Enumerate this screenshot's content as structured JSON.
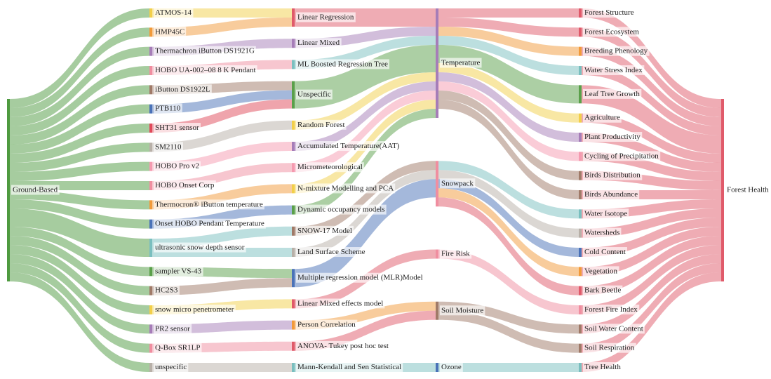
{
  "chart_data": {
    "type": "sankey",
    "nodes": [
      {
        "name": "Ground-Based",
        "color": "#4e9a3f"
      },
      {
        "name": "ATMOS-14",
        "color": "#f2cf4a"
      },
      {
        "name": "HMP45C",
        "color": "#f29a3a"
      },
      {
        "name": "Thermachron iButton DS1921G",
        "color": "#a67db8"
      },
      {
        "name": "HOBO UA-002–08 8 K Pendant",
        "color": "#f08ea0"
      },
      {
        "name": "iButton DS1922L",
        "color": "#a07a68"
      },
      {
        "name": "PTB110",
        "color": "#4a72b8"
      },
      {
        "name": "SHT31 sensor",
        "color": "#e04a5a"
      },
      {
        "name": "SM2110",
        "color": "#b8b0a8"
      },
      {
        "name": "HOBO Pro v2",
        "color": "#f59ab0"
      },
      {
        "name": "HOBO Onset Corp",
        "color": "#f08ea0"
      },
      {
        "name": "Thermocron® iButton temperature",
        "color": "#f29a3a"
      },
      {
        "name": "Onset HOBO Pendant Temperature",
        "color": "#4a72b8"
      },
      {
        "name": "ultrasonic snow depth sensor",
        "color": "#7abfbf"
      },
      {
        "name": "sampler VS-43",
        "color": "#5aa04a"
      },
      {
        "name": "HC2S3",
        "color": "#a07a68"
      },
      {
        "name": "snow micro penetrometer",
        "color": "#f2cf4a"
      },
      {
        "name": "PR2 sensor",
        "color": "#a67db8"
      },
      {
        "name": "Q-Box SR1LP",
        "color": "#f08ea0"
      },
      {
        "name": "unspecific",
        "color": "#b8b0a8"
      },
      {
        "name": "Linear Regression",
        "color": "#e05a6a"
      },
      {
        "name": "Linear Mixed",
        "color": "#a67db8"
      },
      {
        "name": "ML Boosted Regression Tree",
        "color": "#7abfbf"
      },
      {
        "name": "Unspecific",
        "color": "#5aa04a"
      },
      {
        "name": "Random Forest",
        "color": "#f2cf4a"
      },
      {
        "name": "Accumulated Temperature(AAT)",
        "color": "#a67db8"
      },
      {
        "name": "Micrometeorological",
        "color": "#f59ab0"
      },
      {
        "name": "N-mixture Modelling and PCA",
        "color": "#f2cf4a"
      },
      {
        "name": "Dynamic occupancy models",
        "color": "#5aa04a"
      },
      {
        "name": "SNOW-17 Model",
        "color": "#a07a68"
      },
      {
        "name": "Land Surface Scheme",
        "color": "#b8b0a8"
      },
      {
        "name": "Multiple regression model (MLR)Model",
        "color": "#4a72b8"
      },
      {
        "name": "Linear Mixed effects model",
        "color": "#e05a6a"
      },
      {
        "name": "Person Correlation",
        "color": "#f29a3a"
      },
      {
        "name": "ANOVA- Tukey post hoc test",
        "color": "#e05a6a"
      },
      {
        "name": "Mann-Kendall and Sen Statistical",
        "color": "#7abfbf"
      },
      {
        "name": "Temperature",
        "color": "#a67db8"
      },
      {
        "name": "Snowpack",
        "color": "#f08ea0"
      },
      {
        "name": "Fire Risk",
        "color": "#f08ea0"
      },
      {
        "name": "Soil Moisture",
        "color": "#a07a68"
      },
      {
        "name": "Ozone",
        "color": "#4a72b8"
      },
      {
        "name": "Forest Structure",
        "color": "#e05a6a"
      },
      {
        "name": "Forest Ecosystem",
        "color": "#e05a6a"
      },
      {
        "name": "Breeding Phenology",
        "color": "#f29a3a"
      },
      {
        "name": "Water Stress Index",
        "color": "#7abfbf"
      },
      {
        "name": "Leaf Tree Growth",
        "color": "#5aa04a"
      },
      {
        "name": "Agriculture",
        "color": "#f2cf4a"
      },
      {
        "name": "Plant Productivity",
        "color": "#a67db8"
      },
      {
        "name": "Cycling of Precipitation",
        "color": "#f59ab0"
      },
      {
        "name": "Birds Distribution",
        "color": "#a07a68"
      },
      {
        "name": "Birds Abundance",
        "color": "#a07a68"
      },
      {
        "name": "Water Isotope",
        "color": "#7abfbf"
      },
      {
        "name": "Watersheds",
        "color": "#b8b0a8"
      },
      {
        "name": "Cold Content",
        "color": "#4a72b8"
      },
      {
        "name": "Vegetation",
        "color": "#f29a3a"
      },
      {
        "name": "Bark Beetle",
        "color": "#e05a6a"
      },
      {
        "name": "Forest Fire Index",
        "color": "#f08ea0"
      },
      {
        "name": "Soil Water Content",
        "color": "#a07a68"
      },
      {
        "name": "Soil Respiration",
        "color": "#a07a68"
      },
      {
        "name": "Tree Health",
        "color": "#7abfbf"
      },
      {
        "name": "Forest Health",
        "color": "#e05a6a"
      }
    ],
    "links": [
      {
        "source": 0,
        "target": 1,
        "value": 1
      },
      {
        "source": 0,
        "target": 2,
        "value": 1
      },
      {
        "source": 0,
        "target": 3,
        "value": 1
      },
      {
        "source": 0,
        "target": 4,
        "value": 1
      },
      {
        "source": 0,
        "target": 5,
        "value": 1
      },
      {
        "source": 0,
        "target": 6,
        "value": 1
      },
      {
        "source": 0,
        "target": 7,
        "value": 1
      },
      {
        "source": 0,
        "target": 8,
        "value": 1
      },
      {
        "source": 0,
        "target": 9,
        "value": 1
      },
      {
        "source": 0,
        "target": 10,
        "value": 1
      },
      {
        "source": 0,
        "target": 11,
        "value": 1
      },
      {
        "source": 0,
        "target": 12,
        "value": 1
      },
      {
        "source": 0,
        "target": 13,
        "value": 2
      },
      {
        "source": 0,
        "target": 14,
        "value": 1
      },
      {
        "source": 0,
        "target": 15,
        "value": 1
      },
      {
        "source": 0,
        "target": 16,
        "value": 1
      },
      {
        "source": 0,
        "target": 17,
        "value": 1
      },
      {
        "source": 0,
        "target": 18,
        "value": 1
      },
      {
        "source": 0,
        "target": 19,
        "value": 1
      },
      {
        "source": 1,
        "target": 20,
        "value": 1
      },
      {
        "source": 2,
        "target": 20,
        "value": 1
      },
      {
        "source": 3,
        "target": 21,
        "value": 1
      },
      {
        "source": 4,
        "target": 22,
        "value": 1
      },
      {
        "source": 5,
        "target": 23,
        "value": 1
      },
      {
        "source": 6,
        "target": 23,
        "value": 1
      },
      {
        "source": 7,
        "target": 23,
        "value": 1
      },
      {
        "source": 8,
        "target": 24,
        "value": 1
      },
      {
        "source": 9,
        "target": 25,
        "value": 1
      },
      {
        "source": 10,
        "target": 26,
        "value": 1
      },
      {
        "source": 11,
        "target": 27,
        "value": 1
      },
      {
        "source": 12,
        "target": 28,
        "value": 1
      },
      {
        "source": 13,
        "target": 29,
        "value": 1
      },
      {
        "source": 13,
        "target": 30,
        "value": 1
      },
      {
        "source": 14,
        "target": 31,
        "value": 1
      },
      {
        "source": 15,
        "target": 31,
        "value": 1
      },
      {
        "source": 16,
        "target": 32,
        "value": 1
      },
      {
        "source": 17,
        "target": 33,
        "value": 1
      },
      {
        "source": 18,
        "target": 34,
        "value": 1
      },
      {
        "source": 19,
        "target": 35,
        "value": 1
      },
      {
        "source": 20,
        "target": 36,
        "value": 2
      },
      {
        "source": 21,
        "target": 36,
        "value": 1
      },
      {
        "source": 22,
        "target": 36,
        "value": 1
      },
      {
        "source": 23,
        "target": 36,
        "value": 3
      },
      {
        "source": 24,
        "target": 36,
        "value": 1
      },
      {
        "source": 25,
        "target": 36,
        "value": 1
      },
      {
        "source": 26,
        "target": 36,
        "value": 1
      },
      {
        "source": 27,
        "target": 36,
        "value": 1
      },
      {
        "source": 28,
        "target": 36,
        "value": 1
      },
      {
        "source": 29,
        "target": 37,
        "value": 1
      },
      {
        "source": 30,
        "target": 37,
        "value": 1
      },
      {
        "source": 31,
        "target": 37,
        "value": 2
      },
      {
        "source": 32,
        "target": 38,
        "value": 1
      },
      {
        "source": 33,
        "target": 39,
        "value": 1
      },
      {
        "source": 34,
        "target": 39,
        "value": 1
      },
      {
        "source": 35,
        "target": 40,
        "value": 1
      },
      {
        "source": 36,
        "target": 41,
        "value": 1
      },
      {
        "source": 36,
        "target": 42,
        "value": 1
      },
      {
        "source": 36,
        "target": 43,
        "value": 1
      },
      {
        "source": 36,
        "target": 44,
        "value": 1
      },
      {
        "source": 36,
        "target": 45,
        "value": 2
      },
      {
        "source": 36,
        "target": 46,
        "value": 1
      },
      {
        "source": 36,
        "target": 47,
        "value": 1
      },
      {
        "source": 36,
        "target": 48,
        "value": 1
      },
      {
        "source": 36,
        "target": 49,
        "value": 1
      },
      {
        "source": 36,
        "target": 50,
        "value": 1
      },
      {
        "source": 37,
        "target": 51,
        "value": 1
      },
      {
        "source": 37,
        "target": 52,
        "value": 1
      },
      {
        "source": 37,
        "target": 53,
        "value": 1
      },
      {
        "source": 37,
        "target": 54,
        "value": 1
      },
      {
        "source": 37,
        "target": 55,
        "value": 1
      },
      {
        "source": 38,
        "target": 56,
        "value": 1
      },
      {
        "source": 39,
        "target": 57,
        "value": 1
      },
      {
        "source": 39,
        "target": 58,
        "value": 1
      },
      {
        "source": 40,
        "target": 59,
        "value": 1
      },
      {
        "source": 41,
        "target": 60,
        "value": 1
      },
      {
        "source": 42,
        "target": 60,
        "value": 1
      },
      {
        "source": 43,
        "target": 60,
        "value": 1
      },
      {
        "source": 44,
        "target": 60,
        "value": 1
      },
      {
        "source": 45,
        "target": 60,
        "value": 2
      },
      {
        "source": 46,
        "target": 60,
        "value": 1
      },
      {
        "source": 47,
        "target": 60,
        "value": 1
      },
      {
        "source": 48,
        "target": 60,
        "value": 1
      },
      {
        "source": 49,
        "target": 60,
        "value": 1
      },
      {
        "source": 50,
        "target": 60,
        "value": 1
      },
      {
        "source": 51,
        "target": 60,
        "value": 1
      },
      {
        "source": 52,
        "target": 60,
        "value": 1
      },
      {
        "source": 53,
        "target": 60,
        "value": 1
      },
      {
        "source": 54,
        "target": 60,
        "value": 1
      },
      {
        "source": 55,
        "target": 60,
        "value": 1
      },
      {
        "source": 56,
        "target": 60,
        "value": 1
      },
      {
        "source": 57,
        "target": 60,
        "value": 1
      },
      {
        "source": 58,
        "target": 60,
        "value": 1
      },
      {
        "source": 59,
        "target": 60,
        "value": 1
      }
    ]
  }
}
